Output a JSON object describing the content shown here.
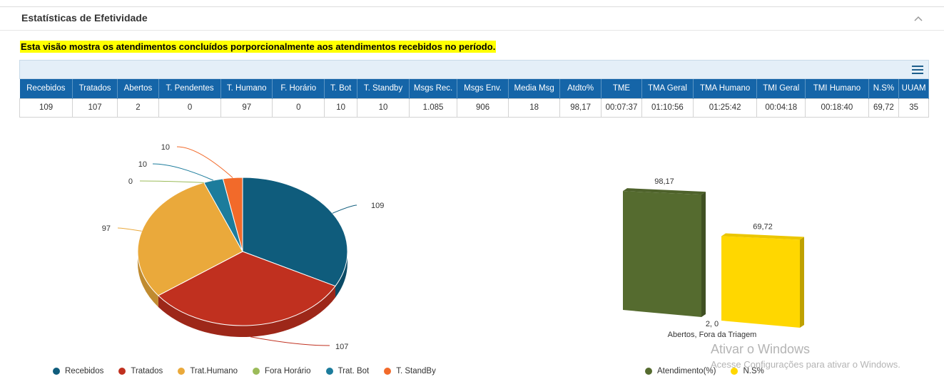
{
  "panel": {
    "title": "Estatísticas de Efetividade"
  },
  "notice": "Esta visão mostra os atendimentos concluídos porporcionalmente aos atendimentos recebidos no período.",
  "table": {
    "headers": [
      "Recebidos",
      "Tratados",
      "Abertos",
      "T. Pendentes",
      "T. Humano",
      "F. Horário",
      "T. Bot",
      "T. Standby",
      "Msgs Rec.",
      "Msgs Env.",
      "Media Msg",
      "Atdto%",
      "TME",
      "TMA Geral",
      "TMA Humano",
      "TMI Geral",
      "TMI Humano",
      "N.S%",
      "UUAM"
    ],
    "row": [
      "109",
      "107",
      "2",
      "0",
      "97",
      "0",
      "10",
      "10",
      "1.085",
      "906",
      "18",
      "98,17",
      "00:07:37",
      "01:10:56",
      "01:25:42",
      "00:04:18",
      "00:18:40",
      "69,72",
      "35"
    ]
  },
  "chart_data": [
    {
      "type": "pie",
      "labels": [
        "Recebidos",
        "Tratados",
        "Trat.Humano",
        "Fora Horário",
        "Trat. Bot",
        "T. StandBy"
      ],
      "values": [
        109,
        107,
        97,
        0,
        10,
        10
      ],
      "colors": [
        "#0f5c7c",
        "#c0301f",
        "#eaa93b",
        "#9bbb59",
        "#1c7c9c",
        "#f26a2a"
      ],
      "legend": "bottom"
    },
    {
      "type": "bar",
      "categories": [
        "Abertos, Fora da Triagem"
      ],
      "series": [
        {
          "name": "Atendimento(%)",
          "values": [
            98.17
          ],
          "label": "98,17",
          "color": "#556b2f"
        },
        {
          "name": "N.S%",
          "values": [
            69.72
          ],
          "label": "69,72",
          "color": "#ffd700"
        }
      ],
      "extra_label": "2, 0",
      "legend": "bottom"
    }
  ],
  "watermark": {
    "title": "Ativar o Windows",
    "subtitle": "Acesse Configurações para ativar o Windows."
  }
}
